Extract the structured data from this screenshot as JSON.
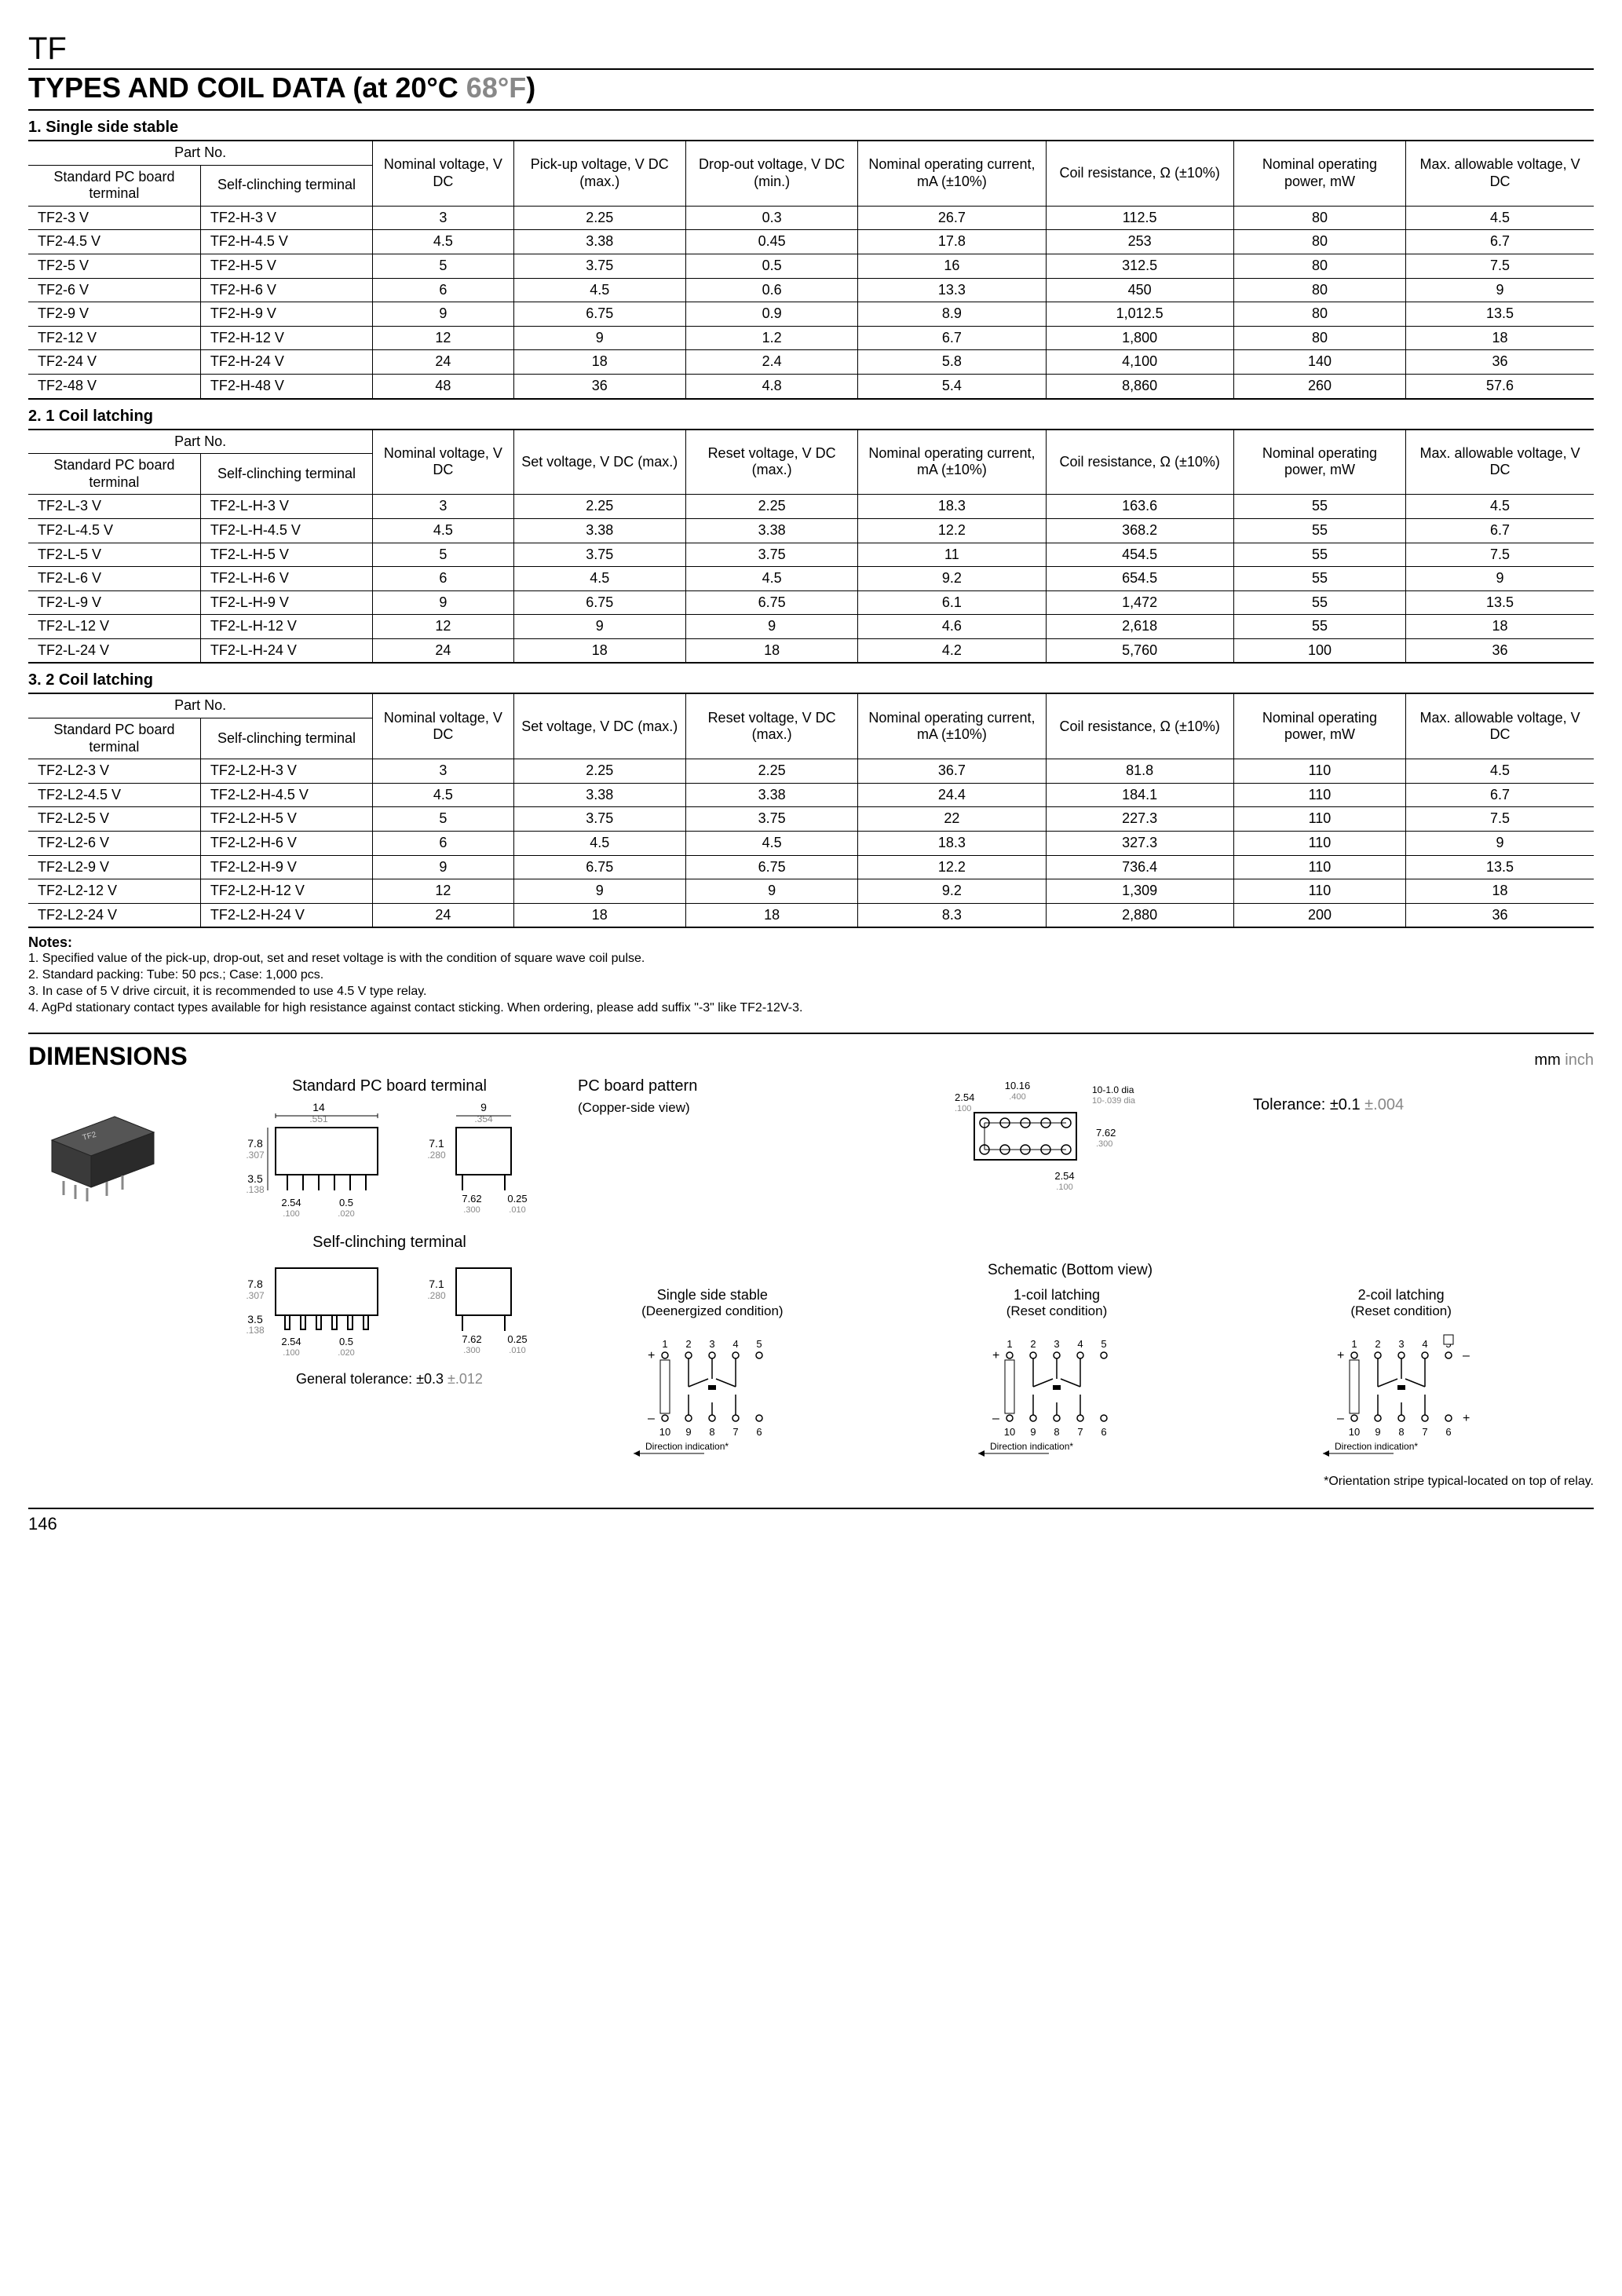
{
  "product_code": "TF",
  "main_title_left": "TYPES AND COIL DATA (at 20°C ",
  "main_title_gray": "68°F",
  "main_title_right": ")",
  "page_number": "146",
  "table1": {
    "subhead": "1. Single side stable",
    "col_header_partno": "Part No.",
    "col_std": "Standard PC board terminal",
    "col_self": "Self-clinching terminal",
    "col_nom_v": "Nominal voltage, V DC",
    "col_pickup": "Pick-up voltage, V DC (max.)",
    "col_dropout": "Drop-out voltage, V DC (min.)",
    "col_nom_i": "Nominal operating current, mA (±10%)",
    "col_res": "Coil resistance, Ω (±10%)",
    "col_pow": "Nominal operating power, mW",
    "col_max": "Max. allowable voltage, V DC",
    "rows": [
      [
        "TF2-3 V",
        "TF2-H-3 V",
        "3",
        "2.25",
        "0.3",
        "26.7",
        "112.5",
        "80",
        "4.5"
      ],
      [
        "TF2-4.5 V",
        "TF2-H-4.5 V",
        "4.5",
        "3.38",
        "0.45",
        "17.8",
        "253",
        "80",
        "6.7"
      ],
      [
        "TF2-5 V",
        "TF2-H-5 V",
        "5",
        "3.75",
        "0.5",
        "16",
        "312.5",
        "80",
        "7.5"
      ],
      [
        "TF2-6 V",
        "TF2-H-6 V",
        "6",
        "4.5",
        "0.6",
        "13.3",
        "450",
        "80",
        "9"
      ],
      [
        "TF2-9 V",
        "TF2-H-9 V",
        "9",
        "6.75",
        "0.9",
        "8.9",
        "1,012.5",
        "80",
        "13.5"
      ],
      [
        "TF2-12 V",
        "TF2-H-12 V",
        "12",
        "9",
        "1.2",
        "6.7",
        "1,800",
        "80",
        "18"
      ],
      [
        "TF2-24 V",
        "TF2-H-24 V",
        "24",
        "18",
        "2.4",
        "5.8",
        "4,100",
        "140",
        "36"
      ],
      [
        "TF2-48 V",
        "TF2-H-48 V",
        "48",
        "36",
        "4.8",
        "5.4",
        "8,860",
        "260",
        "57.6"
      ]
    ]
  },
  "table2": {
    "subhead": "2. 1 Coil latching",
    "col_set": "Set voltage, V DC (max.)",
    "col_reset": "Reset voltage, V DC (max.)",
    "rows": [
      [
        "TF2-L-3 V",
        "TF2-L-H-3 V",
        "3",
        "2.25",
        "2.25",
        "18.3",
        "163.6",
        "55",
        "4.5"
      ],
      [
        "TF2-L-4.5 V",
        "TF2-L-H-4.5 V",
        "4.5",
        "3.38",
        "3.38",
        "12.2",
        "368.2",
        "55",
        "6.7"
      ],
      [
        "TF2-L-5 V",
        "TF2-L-H-5 V",
        "5",
        "3.75",
        "3.75",
        "11",
        "454.5",
        "55",
        "7.5"
      ],
      [
        "TF2-L-6 V",
        "TF2-L-H-6 V",
        "6",
        "4.5",
        "4.5",
        "9.2",
        "654.5",
        "55",
        "9"
      ],
      [
        "TF2-L-9 V",
        "TF2-L-H-9 V",
        "9",
        "6.75",
        "6.75",
        "6.1",
        "1,472",
        "55",
        "13.5"
      ],
      [
        "TF2-L-12 V",
        "TF2-L-H-12 V",
        "12",
        "9",
        "9",
        "4.6",
        "2,618",
        "55",
        "18"
      ],
      [
        "TF2-L-24 V",
        "TF2-L-H-24 V",
        "24",
        "18",
        "18",
        "4.2",
        "5,760",
        "100",
        "36"
      ]
    ]
  },
  "table3": {
    "subhead": "3. 2 Coil latching",
    "rows": [
      [
        "TF2-L2-3 V",
        "TF2-L2-H-3 V",
        "3",
        "2.25",
        "2.25",
        "36.7",
        "81.8",
        "110",
        "4.5"
      ],
      [
        "TF2-L2-4.5 V",
        "TF2-L2-H-4.5 V",
        "4.5",
        "3.38",
        "3.38",
        "24.4",
        "184.1",
        "110",
        "6.7"
      ],
      [
        "TF2-L2-5 V",
        "TF2-L2-H-5 V",
        "5",
        "3.75",
        "3.75",
        "22",
        "227.3",
        "110",
        "7.5"
      ],
      [
        "TF2-L2-6 V",
        "TF2-L2-H-6 V",
        "6",
        "4.5",
        "4.5",
        "18.3",
        "327.3",
        "110",
        "9"
      ],
      [
        "TF2-L2-9 V",
        "TF2-L2-H-9 V",
        "9",
        "6.75",
        "6.75",
        "12.2",
        "736.4",
        "110",
        "13.5"
      ],
      [
        "TF2-L2-12 V",
        "TF2-L2-H-12 V",
        "12",
        "9",
        "9",
        "9.2",
        "1,309",
        "110",
        "18"
      ],
      [
        "TF2-L2-24 V",
        "TF2-L2-H-24 V",
        "24",
        "18",
        "18",
        "8.3",
        "2,880",
        "200",
        "36"
      ]
    ]
  },
  "notes": {
    "head": "Notes:",
    "n1": "1. Specified value of the pick-up, drop-out, set and reset voltage is with the condition of square wave coil pulse.",
    "n2": "2. Standard packing: Tube: 50 pcs.; Case: 1,000 pcs.",
    "n3": "3. In case of 5 V drive circuit, it is recommended to use 4.5 V type relay.",
    "n4": "4. AgPd stationary contact types available for high resistance against contact sticking. When ordering, please add suffix \"-3\" like TF2-12V-3."
  },
  "dimensions": {
    "title": "DIMENSIONS",
    "unit_mm": "mm",
    "unit_inch": " inch",
    "std_label": "Standard PC board terminal",
    "self_label": "Self-clinching terminal",
    "pcb_label": "PC board pattern",
    "pcb_sub": "(Copper-side view)",
    "tol_label_mm": "Tolerance: ±0.1 ",
    "tol_label_in": "±.004",
    "gen_tol_mm": "General tolerance: ±0.3 ",
    "gen_tol_in": "±.012",
    "sch_head": "Schematic (Bottom view)",
    "sch1_t": "Single side stable",
    "sch1_s": "(Deenergized condition)",
    "sch2_t": "1-coil latching",
    "sch2_s": "(Reset condition)",
    "sch3_t": "2-coil latching",
    "sch3_s": "(Reset condition)",
    "dir_label": "Direction indication*",
    "footnote": "*Orientation stripe typical-located on top of relay.",
    "dims": {
      "w14": "14",
      "w14i": ".551",
      "h78": "7.8",
      "h78i": ".307",
      "h35": "3.5",
      "h35i": ".138",
      "p254": "2.54",
      "p254i": ".100",
      "p05": "0.5",
      "p05i": ".020",
      "w9": "9",
      "w9i": ".354",
      "h71": "7.1",
      "h71i": ".280",
      "p762": "7.62",
      "p762i": ".300",
      "p025": "0.25",
      "p025i": ".010",
      "w1016": "10.16",
      "w1016i": ".400",
      "dia": "10-1.0 dia",
      "diai": "10-.039 dia"
    }
  }
}
